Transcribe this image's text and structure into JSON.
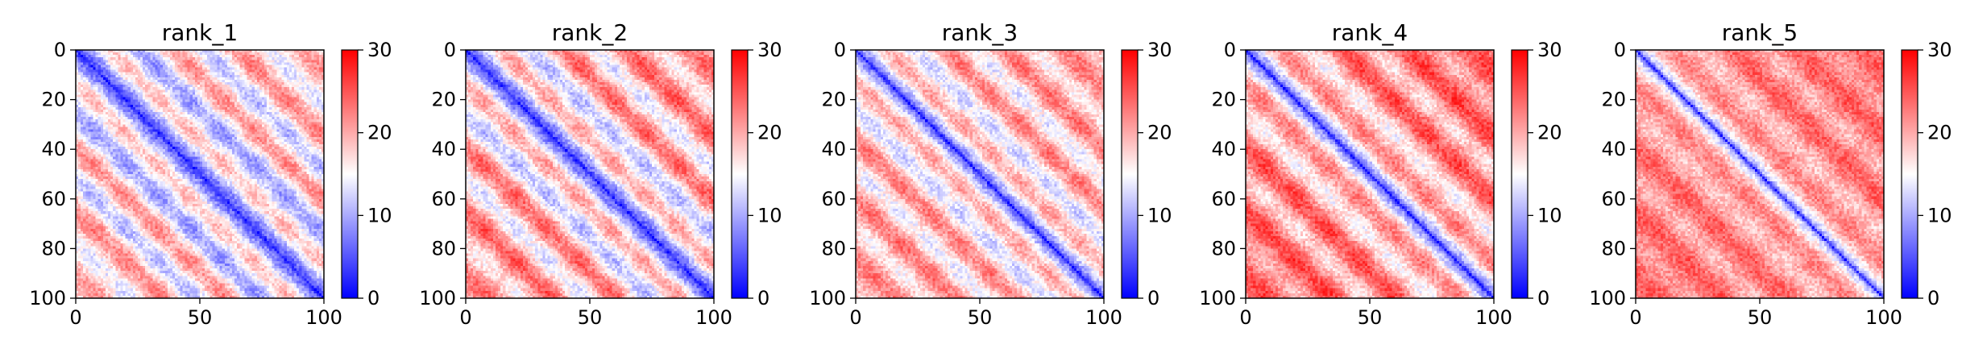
{
  "colormap": {
    "name": "bwr",
    "low": "#0000ff",
    "mid": "#ffffff",
    "high": "#ff0000"
  },
  "chart_data": [
    {
      "type": "heatmap",
      "title": "rank_1",
      "matrix_size": 100,
      "xlim": [
        0,
        100
      ],
      "ylim": [
        100,
        0
      ],
      "x_ticks": [
        0,
        50,
        100
      ],
      "y_ticks": [
        0,
        20,
        40,
        60,
        80,
        100
      ],
      "colorbar": {
        "range": [
          0,
          30
        ],
        "ticks": [
          0,
          10,
          20,
          30
        ]
      },
      "pattern": {
        "diagonal_value": 2,
        "diagonal_width": 2.2,
        "near_value": 10,
        "near_width": 28,
        "far_value": 18,
        "stripe_amp": 6,
        "stripe_period": 26,
        "base_value": 13,
        "far_edge_value": 18
      }
    },
    {
      "type": "heatmap",
      "title": "rank_2",
      "matrix_size": 100,
      "xlim": [
        0,
        100
      ],
      "ylim": [
        100,
        0
      ],
      "x_ticks": [
        0,
        50,
        100
      ],
      "y_ticks": [
        0,
        20,
        40,
        60,
        80,
        100
      ],
      "colorbar": {
        "range": [
          0,
          30
        ],
        "ticks": [
          0,
          10,
          20,
          30
        ]
      },
      "pattern": {
        "diagonal_value": 2,
        "diagonal_width": 2.4,
        "near_value": 10,
        "near_width": 22,
        "far_value": 20,
        "stripe_amp": 6,
        "stripe_period": 26,
        "base_value": 15,
        "far_edge_value": 21
      }
    },
    {
      "type": "heatmap",
      "title": "rank_3",
      "matrix_size": 100,
      "xlim": [
        0,
        100
      ],
      "ylim": [
        100,
        0
      ],
      "x_ticks": [
        0,
        50,
        100
      ],
      "y_ticks": [
        0,
        20,
        40,
        60,
        80,
        100
      ],
      "colorbar": {
        "range": [
          0,
          30
        ],
        "ticks": [
          0,
          10,
          20,
          30
        ]
      },
      "pattern": {
        "diagonal_value": 1,
        "diagonal_width": 2.0,
        "near_value": 12,
        "near_width": 18,
        "far_value": 19,
        "stripe_amp": 5,
        "stripe_period": 24,
        "base_value": 16,
        "far_edge_value": 22
      }
    },
    {
      "type": "heatmap",
      "title": "rank_4",
      "matrix_size": 100,
      "xlim": [
        0,
        100
      ],
      "ylim": [
        100,
        0
      ],
      "x_ticks": [
        0,
        50,
        100
      ],
      "y_ticks": [
        0,
        20,
        40,
        60,
        80,
        100
      ],
      "colorbar": {
        "range": [
          0,
          30
        ],
        "ticks": [
          0,
          10,
          20,
          30
        ]
      },
      "pattern": {
        "diagonal_value": 1,
        "diagonal_width": 2.0,
        "near_value": 12,
        "near_width": 16,
        "far_value": 22,
        "stripe_amp": 5,
        "stripe_period": 26,
        "base_value": 18,
        "far_edge_value": 25
      }
    },
    {
      "type": "heatmap",
      "title": "rank_5",
      "matrix_size": 100,
      "xlim": [
        0,
        100
      ],
      "ylim": [
        100,
        0
      ],
      "x_ticks": [
        0,
        50,
        100
      ],
      "y_ticks": [
        0,
        20,
        40,
        60,
        80,
        100
      ],
      "colorbar": {
        "range": [
          0,
          30
        ],
        "ticks": [
          0,
          10,
          20,
          30
        ]
      },
      "pattern": {
        "diagonal_value": 2,
        "diagonal_width": 2.0,
        "near_value": 14,
        "near_width": 12,
        "far_value": 22,
        "stripe_amp": 3,
        "stripe_period": 26,
        "base_value": 20,
        "far_edge_value": 25
      }
    }
  ]
}
